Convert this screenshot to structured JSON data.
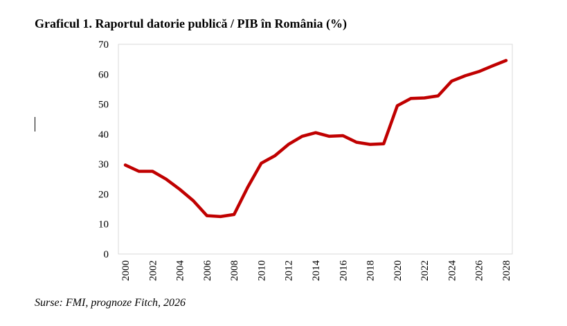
{
  "chart_data": {
    "type": "line",
    "title": "Graficul 1. Raportul datorie publică / PIB în România (%)",
    "source": "Surse: FMI, prognoze Fitch, 2026",
    "xlabel": "",
    "ylabel": "",
    "x": [
      2000,
      2001,
      2002,
      2003,
      2004,
      2005,
      2006,
      2007,
      2008,
      2009,
      2010,
      2011,
      2012,
      2013,
      2014,
      2015,
      2016,
      2017,
      2018,
      2019,
      2020,
      2021,
      2022,
      2023,
      2024,
      2025,
      2026,
      2027,
      2028
    ],
    "x_tick_labels": [
      "2000",
      "2002",
      "2004",
      "2006",
      "2008",
      "2010",
      "2012",
      "2014",
      "2016",
      "2018",
      "2020",
      "2022",
      "2024",
      "2026",
      "2028"
    ],
    "y_tick_labels": [
      "0",
      "10",
      "20",
      "30",
      "40",
      "50",
      "60",
      "70"
    ],
    "ylim": [
      0,
      70
    ],
    "grid": false,
    "legend": "none",
    "series": [
      {
        "color": "#c00000",
        "values": [
          29.7,
          27.6,
          27.6,
          25.0,
          21.6,
          17.8,
          12.8,
          12.5,
          13.2,
          22.3,
          30.3,
          32.8,
          36.6,
          39.3,
          40.5,
          39.3,
          39.5,
          37.3,
          36.6,
          36.8,
          49.5,
          51.9,
          52.1,
          52.8,
          57.7,
          59.5,
          60.9,
          62.8,
          64.6
        ]
      }
    ]
  }
}
